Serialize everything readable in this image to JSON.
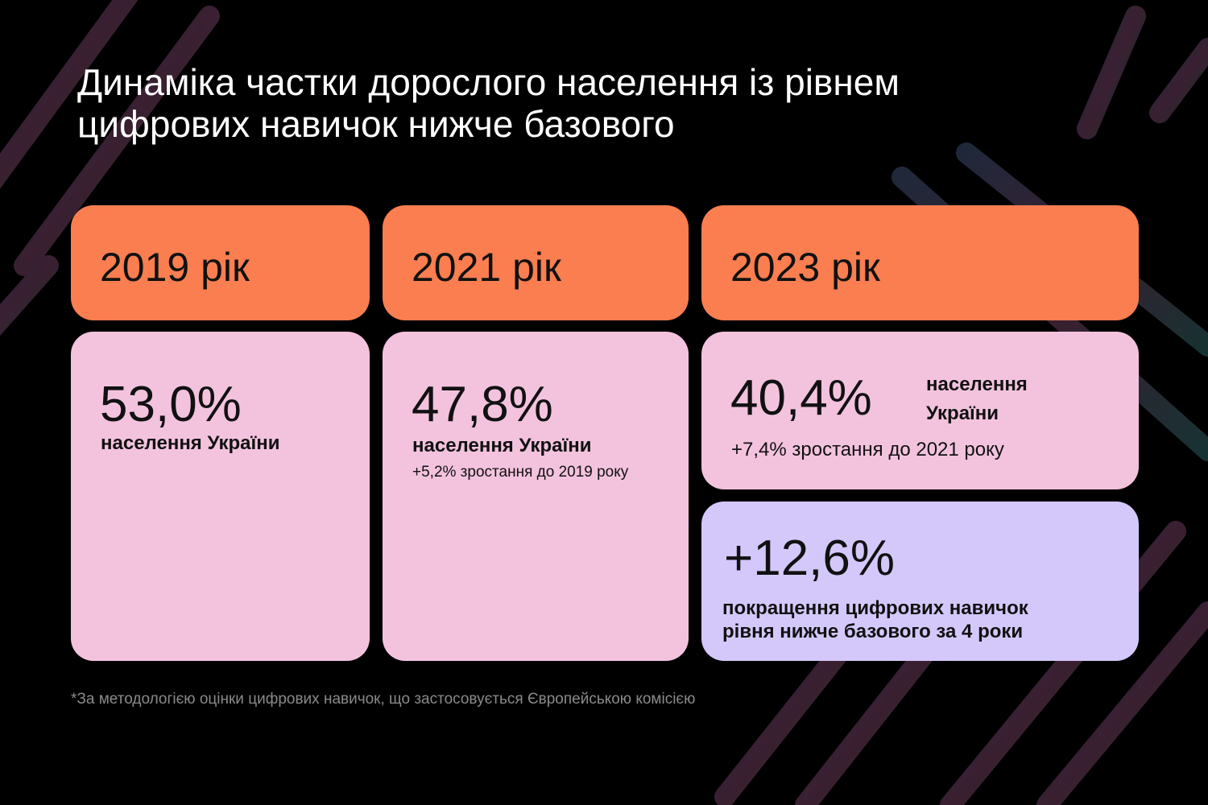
{
  "title": {
    "line1": "Динаміка частки дорослого населення із рівнем",
    "line2": "цифрових навичок нижче базового"
  },
  "cards": [
    {
      "year": "2019 рік",
      "value": "53,0%",
      "label": "населення України"
    },
    {
      "year": "2021 рік",
      "value": "47,8%",
      "label": "населення України",
      "change": "+5,2% зростання до 2019 року"
    },
    {
      "year": "2023 рік",
      "value": "40,4%",
      "label_line1": "населення",
      "label_line2": "України",
      "change": "+7,4% зростання до 2021 року"
    }
  ],
  "summary": {
    "value": "+12,6%",
    "line1": "покращення цифрових навичок",
    "line2": "рівня нижче базового за 4 роки"
  },
  "footnote": "*За методологією оцінки цифрових навичок, що застосовується Європейською комісією",
  "colors": {
    "orange": "#FA7E50",
    "pink": "#F3C3DE",
    "lavender": "#D4C8FB",
    "background": "#000000"
  }
}
